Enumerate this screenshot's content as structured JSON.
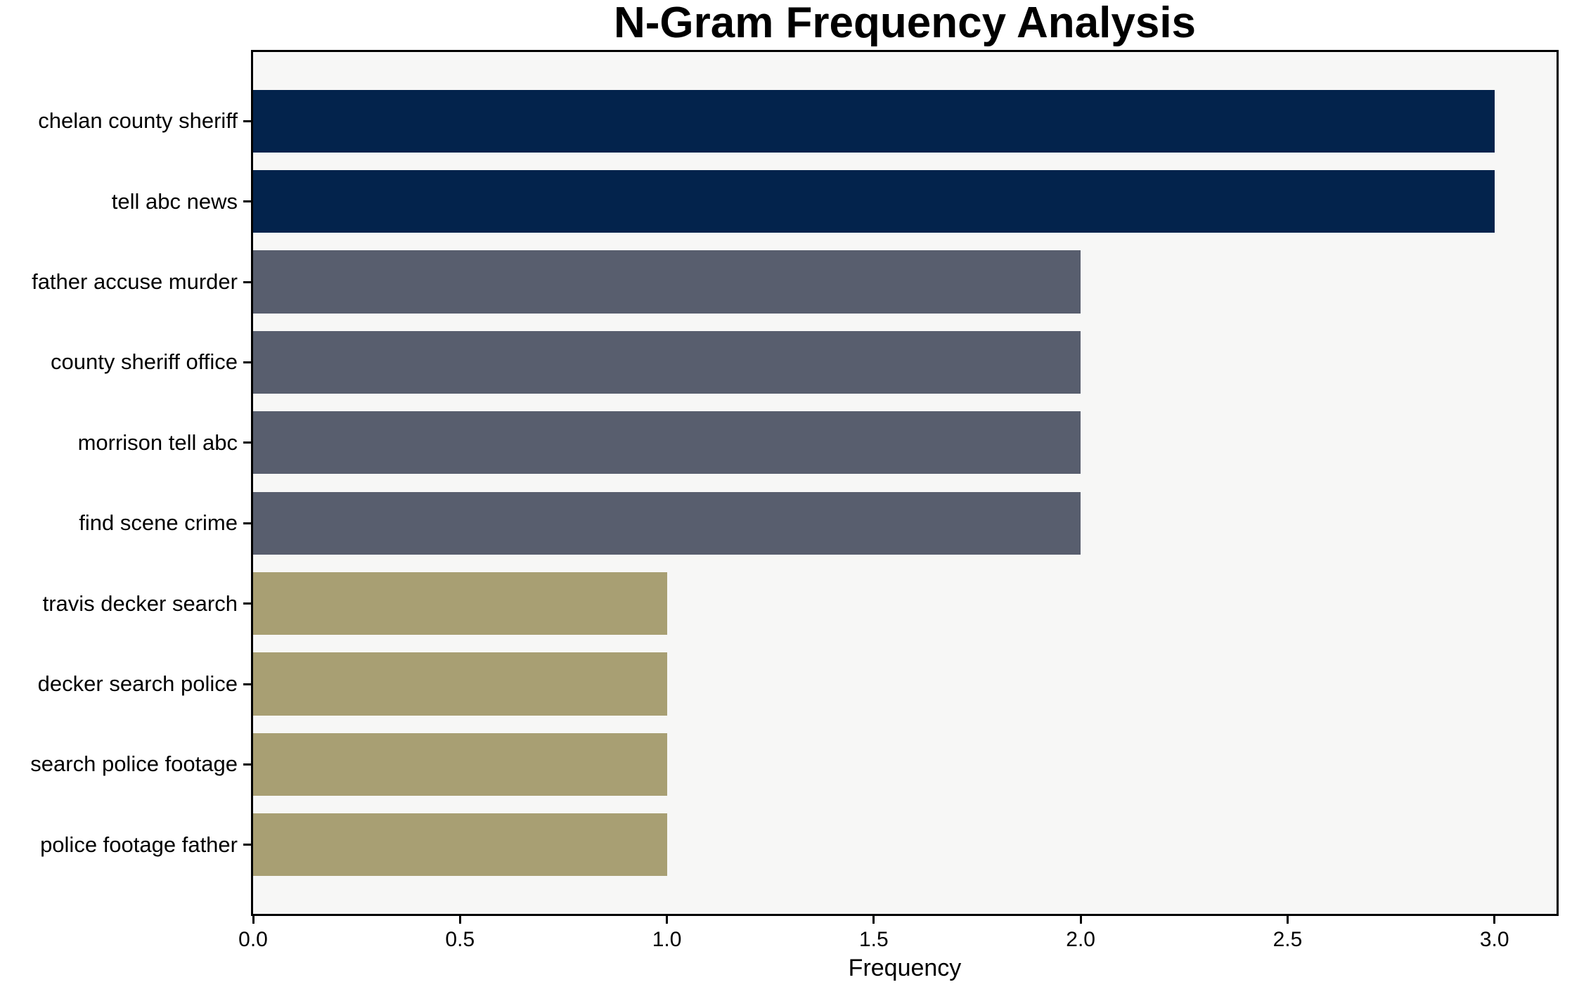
{
  "title": "N-Gram Frequency Analysis",
  "chart_data": {
    "type": "bar",
    "orientation": "horizontal",
    "title": "N-Gram Frequency Analysis",
    "xlabel": "Frequency",
    "ylabel": "",
    "grid": false,
    "legend": false,
    "xlim": [
      0,
      3.15
    ],
    "xticks": [
      0.0,
      0.5,
      1.0,
      1.5,
      2.0,
      2.5,
      3.0
    ],
    "xtick_labels": [
      "0.0",
      "0.5",
      "1.0",
      "1.5",
      "2.0",
      "2.5",
      "3.0"
    ],
    "categories": [
      "chelan county sheriff",
      "tell abc news",
      "father accuse murder",
      "county sheriff office",
      "morrison tell abc",
      "find scene crime",
      "travis decker search",
      "decker search police",
      "search police footage",
      "police footage father"
    ],
    "values": [
      3,
      3,
      2,
      2,
      2,
      2,
      1,
      1,
      1,
      1
    ],
    "bar_colors": [
      "#03234c",
      "#03234c",
      "#585e6e",
      "#585e6e",
      "#585e6e",
      "#585e6e",
      "#a89f73",
      "#a89f73",
      "#a89f73",
      "#a89f73"
    ],
    "colors": {
      "frequency_3": "#03234c",
      "frequency_2": "#585e6e",
      "frequency_1": "#a89f73",
      "plot_background": "#f7f7f6",
      "figure_background": "#ffffff",
      "spine": "#000000",
      "text": "#000000"
    }
  }
}
